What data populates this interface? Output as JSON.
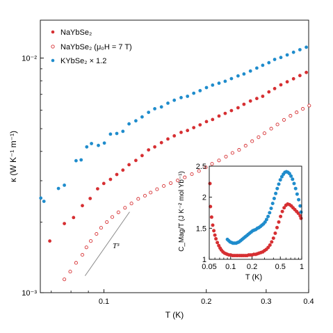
{
  "colors": {
    "red": "#d62f32",
    "blue": "#1f8ccc",
    "guide": "#8a8a8a",
    "axis": "#000000"
  },
  "main": {
    "x_label": "T (K)",
    "y_label": "κ (W K⁻¹ m⁻¹)",
    "x_ticks": [
      "0.1",
      "0.2",
      "0.3",
      "0.4"
    ],
    "y_ticks": [
      "10⁻³",
      "10⁻²"
    ],
    "guide_label": "T³"
  },
  "legend": [
    {
      "text": "NaYbSe₂",
      "marker": "filled",
      "color": "#d62f32"
    },
    {
      "text": "NaYbSe₂ (μ₀H = 7 T)",
      "marker": "open",
      "color": "#d62f32"
    },
    {
      "text": "KYbSe₂ × 1.2",
      "marker": "filled",
      "color": "#1f8ccc"
    }
  ],
  "inset": {
    "x_label": "T (K)",
    "y_label": "C_Mag/T (J K⁻² mol Yb⁻¹)",
    "x_ticks": [
      "0.05",
      "0.1",
      "0.2",
      "0.5",
      "1"
    ],
    "y_ticks": [
      "1",
      "1.5",
      "2",
      "2.5"
    ]
  },
  "chart_data": [
    {
      "type": "scatter",
      "title": "",
      "xlabel": "T (K)",
      "ylabel": "κ (W K⁻¹ m⁻¹)",
      "x_scale": "log",
      "y_scale": "log",
      "xlim": [
        0.065,
        0.4
      ],
      "ylim": [
        0.001,
        0.0145
      ],
      "grid": false,
      "legend_position": "top-left",
      "series": [
        {
          "name": "NaYbSe₂",
          "marker": "filled",
          "color": "#d62f32",
          "x": [
            0.0693,
            0.0765,
            0.0814,
            0.0864,
            0.0911,
            0.0958,
            0.0999,
            0.1045,
            0.1091,
            0.1137,
            0.1185,
            0.1241,
            0.1295,
            0.1353,
            0.1411,
            0.1476,
            0.1542,
            0.161,
            0.1686,
            0.1761,
            0.1837,
            0.1917,
            0.2002,
            0.2087,
            0.2179,
            0.2273,
            0.2371,
            0.2479,
            0.2581,
            0.2696,
            0.2815,
            0.293,
            0.3056,
            0.3178,
            0.3314,
            0.3458,
            0.361,
            0.377,
            0.3936
          ],
          "y": [
            0.00166,
            0.00197,
            0.00209,
            0.00235,
            0.00252,
            0.00277,
            0.00292,
            0.00304,
            0.00319,
            0.00333,
            0.00351,
            0.00366,
            0.00384,
            0.00406,
            0.00418,
            0.00436,
            0.00452,
            0.00466,
            0.00482,
            0.00491,
            0.00505,
            0.00519,
            0.00536,
            0.00547,
            0.00566,
            0.00581,
            0.00597,
            0.00614,
            0.00635,
            0.00656,
            0.00672,
            0.00687,
            0.00717,
            0.00741,
            0.00769,
            0.00792,
            0.00816,
            0.00842,
            0.00868
          ]
        },
        {
          "name": "NaYbSe₂ (μ₀H = 7 T)",
          "marker": "open",
          "color": "#d62f32",
          "x": [
            0.0765,
            0.0796,
            0.0828,
            0.0864,
            0.0888,
            0.0915,
            0.0951,
            0.0981,
            0.102,
            0.1058,
            0.1103,
            0.1153,
            0.1205,
            0.1261,
            0.132,
            0.1372,
            0.1433,
            0.15,
            0.1572,
            0.1648,
            0.1729,
            0.1814,
            0.1903,
            0.1993,
            0.2079,
            0.2179,
            0.2284,
            0.2388,
            0.2497,
            0.261,
            0.2728,
            0.2849,
            0.2965,
            0.3103,
            0.3238,
            0.3385,
            0.3536,
            0.3687,
            0.3845,
            0.4015
          ],
          "y": [
            0.00114,
            0.00123,
            0.00134,
            0.00145,
            0.00156,
            0.00166,
            0.00178,
            0.00189,
            0.002,
            0.0021,
            0.0022,
            0.0023,
            0.0024,
            0.00251,
            0.00259,
            0.00267,
            0.00276,
            0.00285,
            0.00293,
            0.00301,
            0.0031,
            0.0032,
            0.0033,
            0.00342,
            0.00354,
            0.00366,
            0.0038,
            0.00394,
            0.00406,
            0.00423,
            0.00442,
            0.0046,
            0.00478,
            0.005,
            0.00521,
            0.00545,
            0.00567,
            0.00587,
            0.00607,
            0.00627
          ]
        },
        {
          "name": "KYbSe₂ × 1.2",
          "marker": "filled",
          "color": "#1f8ccc",
          "x": [
            0.0652,
            0.0666,
            0.0735,
            0.0765,
            0.0828,
            0.0857,
            0.089,
            0.0919,
            0.0963,
            0.1003,
            0.1045,
            0.1091,
            0.1137,
            0.1185,
            0.1241,
            0.1295,
            0.1353,
            0.1411,
            0.1476,
            0.1542,
            0.161,
            0.1686,
            0.1761,
            0.1837,
            0.1917,
            0.2002,
            0.2087,
            0.2179,
            0.2273,
            0.2371,
            0.2479,
            0.2581,
            0.2696,
            0.2815,
            0.293,
            0.3056,
            0.3178,
            0.3314,
            0.3458,
            0.361,
            0.377,
            0.3936
          ],
          "y": [
            0.00253,
            0.00245,
            0.00278,
            0.00287,
            0.00365,
            0.00368,
            0.00418,
            0.00432,
            0.00424,
            0.00434,
            0.00474,
            0.00477,
            0.00487,
            0.00524,
            0.0054,
            0.00561,
            0.00587,
            0.00608,
            0.00619,
            0.00642,
            0.00661,
            0.00678,
            0.00687,
            0.00708,
            0.00726,
            0.00748,
            0.00767,
            0.00781,
            0.00796,
            0.00817,
            0.00839,
            0.00855,
            0.0088,
            0.00906,
            0.00931,
            0.00955,
            0.00986,
            0.01005,
            0.01031,
            0.01058,
            0.01085,
            0.01112
          ]
        }
      ],
      "guide_line": {
        "label": "T³",
        "x": [
          0.088,
          0.119
        ],
        "y": [
          0.00118,
          0.00221
        ]
      }
    },
    {
      "type": "scatter",
      "title": "",
      "xlabel": "T (K)",
      "ylabel": "C_Mag/T (J K⁻² mol Yb⁻¹)",
      "x_scale": "log",
      "y_scale": "linear",
      "xlim": [
        0.05,
        1.0
      ],
      "ylim": [
        1.0,
        2.5
      ],
      "grid": false,
      "series": [
        {
          "name": "NaYbSe₂",
          "color": "#d62f32",
          "x": [
            0.05,
            0.052,
            0.054,
            0.056,
            0.058,
            0.06,
            0.062,
            0.065,
            0.068,
            0.071,
            0.074,
            0.078,
            0.082,
            0.086,
            0.09,
            0.095,
            0.1,
            0.106,
            0.112,
            0.119,
            0.126,
            0.134,
            0.142,
            0.15,
            0.16,
            0.17,
            0.18,
            0.19,
            0.2,
            0.212,
            0.225,
            0.238,
            0.252,
            0.267,
            0.283,
            0.3,
            0.318,
            0.337,
            0.357,
            0.378,
            0.4,
            0.424,
            0.449,
            0.476,
            0.504,
            0.534,
            0.566,
            0.6,
            0.635,
            0.673,
            0.713,
            0.755,
            0.8,
            0.848,
            0.898,
            0.951,
            1.0
          ],
          "y": [
            2.22,
            1.85,
            1.68,
            1.55,
            1.46,
            1.39,
            1.33,
            1.27,
            1.22,
            1.18,
            1.15,
            1.12,
            1.1,
            1.09,
            1.08,
            1.07,
            1.07,
            1.06,
            1.06,
            1.06,
            1.06,
            1.06,
            1.06,
            1.06,
            1.06,
            1.06,
            1.07,
            1.07,
            1.07,
            1.08,
            1.08,
            1.09,
            1.1,
            1.11,
            1.12,
            1.14,
            1.16,
            1.19,
            1.23,
            1.28,
            1.34,
            1.42,
            1.51,
            1.6,
            1.69,
            1.77,
            1.83,
            1.87,
            1.89,
            1.88,
            1.86,
            1.83,
            1.8,
            1.77,
            1.74,
            1.7,
            1.66
          ]
        },
        {
          "name": "KYbSe₂",
          "color": "#1f8ccc",
          "x": [
            0.09,
            0.094,
            0.098,
            0.103,
            0.108,
            0.113,
            0.119,
            0.125,
            0.131,
            0.138,
            0.145,
            0.152,
            0.16,
            0.168,
            0.176,
            0.185,
            0.195,
            0.205,
            0.215,
            0.226,
            0.238,
            0.25,
            0.263,
            0.276,
            0.29,
            0.305,
            0.32,
            0.336,
            0.353,
            0.371,
            0.39,
            0.41,
            0.431,
            0.453,
            0.476,
            0.5,
            0.525,
            0.552,
            0.58,
            0.609,
            0.64,
            0.673,
            0.707,
            0.742,
            0.78,
            0.82,
            0.861,
            0.905,
            0.951,
            1.0
          ],
          "y": [
            1.32,
            1.3,
            1.28,
            1.27,
            1.26,
            1.26,
            1.26,
            1.27,
            1.28,
            1.3,
            1.32,
            1.34,
            1.36,
            1.38,
            1.4,
            1.42,
            1.44,
            1.46,
            1.47,
            1.48,
            1.5,
            1.51,
            1.53,
            1.55,
            1.57,
            1.6,
            1.64,
            1.69,
            1.75,
            1.82,
            1.9,
            1.98,
            2.06,
            2.14,
            2.21,
            2.28,
            2.33,
            2.37,
            2.4,
            2.41,
            2.4,
            2.38,
            2.34,
            2.29,
            2.22,
            2.14,
            2.05,
            1.96,
            1.86,
            1.76
          ]
        }
      ]
    }
  ]
}
